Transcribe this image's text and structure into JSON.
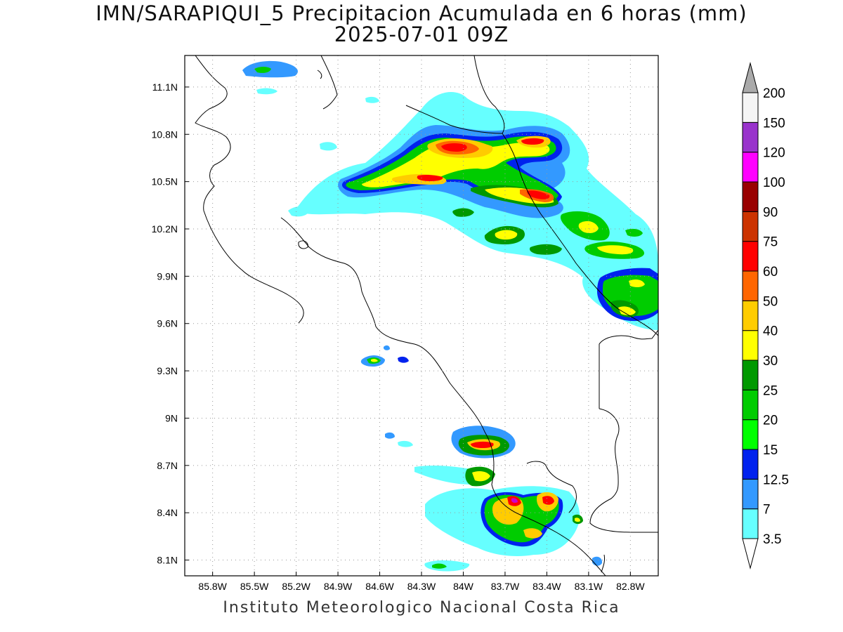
{
  "title": "IMN/SARAPIQUI_5 Precipitacion Acumulada en 6 horas (mm)",
  "subtitle": "2025-07-01 09Z",
  "footer": "Instituto Meteorologico Nacional Costa Rica",
  "map": {
    "lon_range": [
      -86.0,
      -82.6
    ],
    "lat_range": [
      8.0,
      11.3
    ],
    "lon_ticks": [
      {
        "value": -85.8,
        "label": "85.8W"
      },
      {
        "value": -85.5,
        "label": "85.5W"
      },
      {
        "value": -85.2,
        "label": "85.2W"
      },
      {
        "value": -84.9,
        "label": "84.9W"
      },
      {
        "value": -84.6,
        "label": "84.6W"
      },
      {
        "value": -84.3,
        "label": "84.3W"
      },
      {
        "value": -84.0,
        "label": "84W"
      },
      {
        "value": -83.7,
        "label": "83.7W"
      },
      {
        "value": -83.4,
        "label": "83.4W"
      },
      {
        "value": -83.1,
        "label": "83.1W"
      },
      {
        "value": -82.8,
        "label": "82.8W"
      }
    ],
    "lat_ticks": [
      {
        "value": 11.1,
        "label": "11.1N"
      },
      {
        "value": 10.8,
        "label": "10.8N"
      },
      {
        "value": 10.5,
        "label": "10.5N"
      },
      {
        "value": 10.2,
        "label": "10.2N"
      },
      {
        "value": 9.9,
        "label": "9.9N"
      },
      {
        "value": 9.6,
        "label": "9.6N"
      },
      {
        "value": 9.3,
        "label": "9.3N"
      },
      {
        "value": 9.0,
        "label": "9N"
      },
      {
        "value": 8.7,
        "label": "8.7N"
      },
      {
        "value": 8.4,
        "label": "8.4N"
      },
      {
        "value": 8.1,
        "label": "8.1N"
      }
    ],
    "grid": true
  },
  "colorbar": {
    "labels": [
      "3.5",
      "7",
      "12.5",
      "15",
      "20",
      "25",
      "30",
      "40",
      "50",
      "60",
      "75",
      "90",
      "100",
      "120",
      "150",
      "200"
    ],
    "colors": [
      "#66ffff",
      "#3399ff",
      "#0022ee",
      "#00ff00",
      "#00cc00",
      "#009900",
      "#ffff00",
      "#ffcc00",
      "#ff6600",
      "#ff0000",
      "#cc3300",
      "#990000",
      "#ff00ff",
      "#9933cc",
      "#f5f5f5"
    ],
    "under_color": "#ffffff",
    "over_color": "#aaaaaa"
  }
}
